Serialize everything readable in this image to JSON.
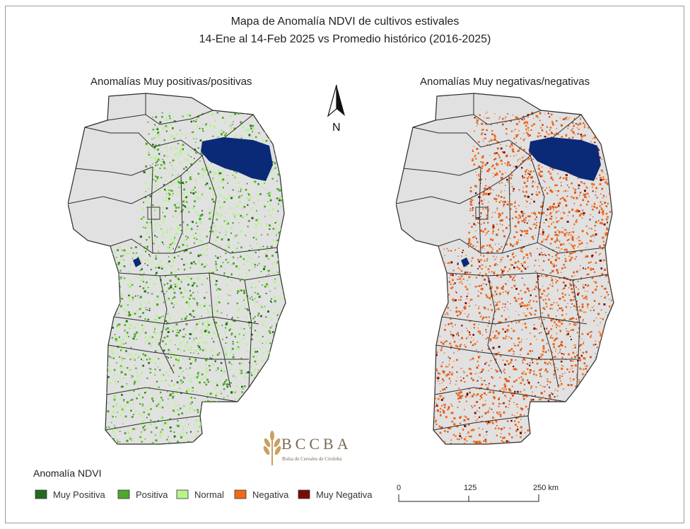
{
  "title": {
    "line1": "Mapa de Anomalía NDVI de cultivos estivales",
    "line2": "14-Ene al 14-Feb 2025 vs Promedio histórico (2016-2025)"
  },
  "panels": {
    "left_title": "Anomalías Muy positivas/positivas",
    "right_title": "Anomalías Muy negativas/negativas"
  },
  "north_arrow": {
    "label": "N",
    "icon": "north-arrow-icon"
  },
  "logo": {
    "name": "BCCBA",
    "subtitle": "Bolsa de Cereales de Córdoba",
    "color": "#c9a063"
  },
  "legend": {
    "title": "Anomalía NDVI",
    "items": [
      {
        "label": "Muy Positiva",
        "color": "#1f6b1f"
      },
      {
        "label": "Positiva",
        "color": "#4fa82a"
      },
      {
        "label": "Normal",
        "color": "#b6f58a"
      },
      {
        "label": "Negativa",
        "color": "#f06a1a"
      },
      {
        "label": "Muy Negativa",
        "color": "#7a0a0a"
      }
    ]
  },
  "scale_bar": {
    "ticks": [
      "0",
      "125",
      "250 km"
    ]
  },
  "colors": {
    "land": "#e1e1e1",
    "border": "#2b2b2b",
    "water": "#0a2a78"
  }
}
